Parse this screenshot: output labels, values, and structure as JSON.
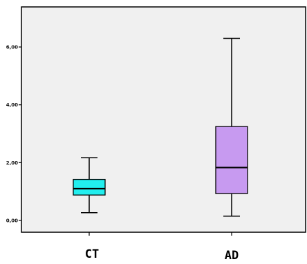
{
  "chart_data": {
    "type": "box",
    "title": "",
    "xlabel": "",
    "ylabel": "",
    "ylim": [
      -0.3,
      7.5
    ],
    "y_ticks": [
      {
        "value": 0,
        "label": "0,00"
      },
      {
        "value": 2,
        "label": "2,00"
      },
      {
        "value": 4,
        "label": "4,00"
      },
      {
        "value": 6,
        "label": "6,00"
      }
    ],
    "categories": [
      "CT",
      "AD"
    ],
    "boxes": [
      {
        "category": "CT",
        "min": 0.27,
        "q1": 0.88,
        "median": 1.1,
        "q3": 1.42,
        "max": 2.17,
        "color": "#22eeee"
      },
      {
        "category": "AD",
        "min": 0.15,
        "q1": 0.93,
        "median": 1.83,
        "q3": 3.25,
        "max": 6.3,
        "color": "#c79af0"
      }
    ],
    "grid": false,
    "background": "#f0f0f0"
  }
}
